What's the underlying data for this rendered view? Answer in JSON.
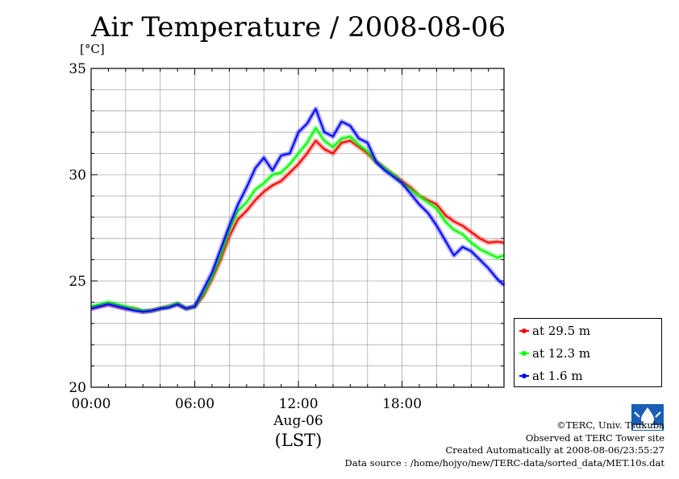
{
  "title": "Air Temperature / 2008-08-06",
  "y_unit": "[°C]",
  "x_caption_line1": "Aug-06",
  "x_caption_line2": "(LST)",
  "credits": {
    "line1": "©TERC, Univ. Tsukuba",
    "line2": "Observed at TERC Tower site",
    "line3": "Created Automatically at 2008-08-06/23:55:27",
    "line4": "Data source : /home/hojyo/new/TERC-data/sorted_data/MET.10s.dat"
  },
  "logo_text": "TERC",
  "chart_data": {
    "type": "line",
    "title": "Air Temperature / 2008-08-06",
    "ylabel": "[°C]",
    "xlabel": "Aug-06 (LST)",
    "xlim": [
      0,
      23.9
    ],
    "ylim": [
      20,
      35
    ],
    "x_ticks": [
      {
        "value": 0,
        "label": "00:00"
      },
      {
        "value": 6,
        "label": "06:00"
      },
      {
        "value": 12,
        "label": "12:00"
      },
      {
        "value": 18,
        "label": "18:00"
      }
    ],
    "y_ticks": [
      {
        "value": 20,
        "label": "20"
      },
      {
        "value": 25,
        "label": "25"
      },
      {
        "value": 30,
        "label": "30"
      },
      {
        "value": 35,
        "label": "35"
      }
    ],
    "grid": true,
    "legend_position": "bottom-right, outside plot",
    "series": [
      {
        "name": "at 29.5 m",
        "color": "#ff0000",
        "x": [
          0,
          0.5,
          1,
          1.5,
          2,
          2.5,
          3,
          3.5,
          4,
          4.5,
          5,
          5.5,
          6,
          6.5,
          7,
          7.5,
          8,
          8.5,
          9,
          9.5,
          10,
          10.5,
          11,
          11.5,
          12,
          12.5,
          13,
          13.5,
          14,
          14.5,
          15,
          15.5,
          16,
          16.5,
          17,
          17.5,
          18,
          18.5,
          19,
          19.5,
          20,
          20.5,
          21,
          21.5,
          22,
          22.5,
          23,
          23.5,
          23.9
        ],
        "y": [
          23.7,
          23.8,
          23.9,
          23.8,
          23.7,
          23.7,
          23.55,
          23.6,
          23.7,
          23.8,
          23.9,
          23.7,
          23.8,
          24.3,
          25.1,
          26.0,
          27.1,
          27.9,
          28.3,
          28.8,
          29.2,
          29.5,
          29.7,
          30.1,
          30.5,
          31.0,
          31.6,
          31.2,
          31.0,
          31.5,
          31.6,
          31.3,
          31.0,
          30.6,
          30.3,
          30.0,
          29.7,
          29.4,
          29.0,
          28.8,
          28.6,
          28.1,
          27.8,
          27.6,
          27.3,
          27.0,
          26.8,
          26.85,
          26.8
        ]
      },
      {
        "name": "at 12.3 m",
        "color": "#00ff00",
        "x": [
          0,
          0.5,
          1,
          1.5,
          2,
          2.5,
          3,
          3.5,
          4,
          4.5,
          5,
          5.5,
          6,
          6.5,
          7,
          7.5,
          8,
          8.5,
          9,
          9.5,
          10,
          10.5,
          11,
          11.5,
          12,
          12.5,
          13,
          13.5,
          14,
          14.5,
          15,
          15.5,
          16,
          16.5,
          17,
          17.5,
          18,
          18.5,
          19,
          19.5,
          20,
          20.5,
          21,
          21.5,
          22,
          22.5,
          23,
          23.5,
          23.9
        ],
        "y": [
          23.8,
          23.9,
          24.0,
          23.9,
          23.8,
          23.7,
          23.6,
          23.6,
          23.7,
          23.8,
          23.95,
          23.7,
          23.8,
          24.4,
          25.2,
          26.2,
          27.4,
          28.3,
          28.7,
          29.3,
          29.6,
          30.0,
          30.1,
          30.5,
          31.0,
          31.5,
          32.2,
          31.6,
          31.3,
          31.7,
          31.8,
          31.4,
          31.1,
          30.6,
          30.3,
          30.0,
          29.6,
          29.3,
          29.0,
          28.7,
          28.4,
          27.8,
          27.4,
          27.2,
          26.8,
          26.5,
          26.3,
          26.1,
          26.2
        ]
      },
      {
        "name": "at 1.6 m",
        "color": "#0000ff",
        "x": [
          0,
          0.5,
          1,
          1.5,
          2,
          2.5,
          3,
          3.5,
          4,
          4.5,
          5,
          5.5,
          6,
          6.5,
          7,
          7.5,
          8,
          8.5,
          9,
          9.5,
          10,
          10.5,
          11,
          11.5,
          12,
          12.5,
          13,
          13.5,
          14,
          14.5,
          15,
          15.5,
          16,
          16.5,
          17,
          17.5,
          18,
          18.5,
          19,
          19.5,
          20,
          20.5,
          21,
          21.5,
          22,
          22.5,
          23,
          23.5,
          23.9
        ],
        "y": [
          23.7,
          23.8,
          23.9,
          23.8,
          23.7,
          23.6,
          23.55,
          23.6,
          23.7,
          23.75,
          23.9,
          23.7,
          23.8,
          24.6,
          25.4,
          26.5,
          27.6,
          28.6,
          29.4,
          30.3,
          30.8,
          30.2,
          30.9,
          31.0,
          32.0,
          32.4,
          33.1,
          32.0,
          31.8,
          32.5,
          32.3,
          31.7,
          31.5,
          30.6,
          30.2,
          29.9,
          29.6,
          29.1,
          28.6,
          28.2,
          27.6,
          26.9,
          26.2,
          26.6,
          26.4,
          26.0,
          25.6,
          25.1,
          24.8
        ]
      }
    ]
  }
}
